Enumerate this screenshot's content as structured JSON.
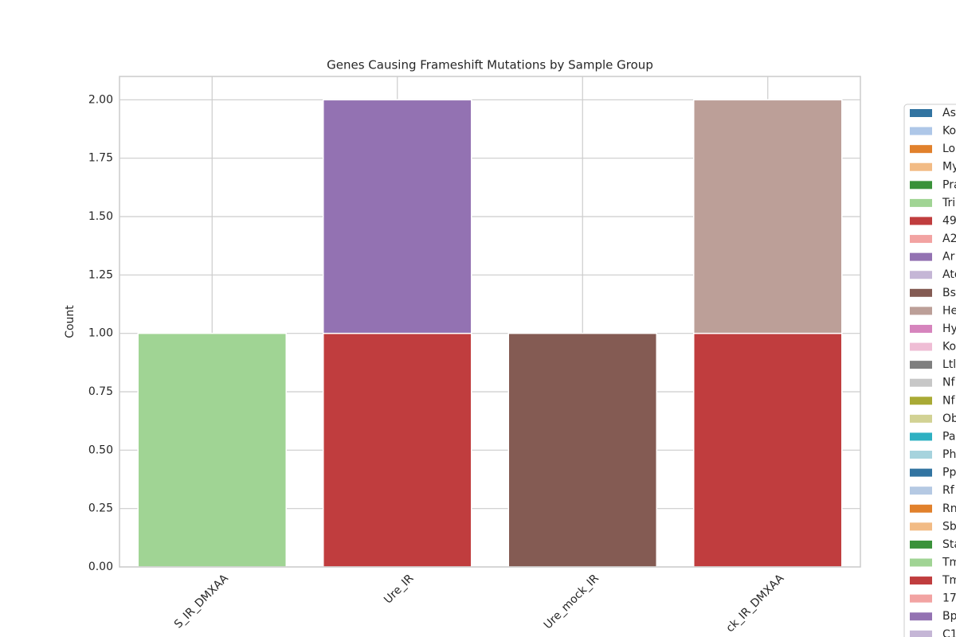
{
  "chart_data": {
    "type": "bar",
    "stacked": true,
    "title": "Genes Causing Frameshift Mutations by Sample Group",
    "y_label": "Count",
    "categories": [
      "S_IR_DMXAA",
      "Ure_IR",
      "Ure_mock_IR",
      "ck_IR_DMXAA"
    ],
    "ylim": [
      0,
      2.1
    ],
    "yticks": [
      {
        "value": 0,
        "label": "0.00"
      },
      {
        "value": 0.25,
        "label": "0.25"
      },
      {
        "value": 0.5,
        "label": "0.50"
      },
      {
        "value": 0.75,
        "label": "0.75"
      },
      {
        "value": 1,
        "label": "1.00"
      },
      {
        "value": 1.25,
        "label": "1.25"
      },
      {
        "value": 1.5,
        "label": "1.50"
      },
      {
        "value": 1.75,
        "label": "1.75"
      },
      {
        "value": 2,
        "label": "2.00"
      }
    ],
    "grid": true,
    "legend_position": "right",
    "series": [
      {
        "name": "As",
        "color": "#3274a1",
        "values": [
          null,
          null,
          null,
          null
        ]
      },
      {
        "name": "Ko",
        "color": "#aec7e8",
        "values": [
          null,
          null,
          null,
          null
        ]
      },
      {
        "name": "Lo",
        "color": "#e1812c",
        "values": [
          null,
          null,
          null,
          null
        ]
      },
      {
        "name": "My",
        "color": "#f2bb85",
        "values": [
          null,
          null,
          null,
          null
        ]
      },
      {
        "name": "Pra",
        "color": "#3a923a",
        "values": [
          null,
          null,
          null,
          null
        ]
      },
      {
        "name": "Tri",
        "color": "#a0d494",
        "values": [
          1,
          null,
          null,
          null
        ]
      },
      {
        "name": "49",
        "color": "#c03d3e",
        "values": [
          null,
          1,
          null,
          1
        ]
      },
      {
        "name": "A2",
        "color": "#f2a3a2",
        "values": [
          null,
          null,
          null,
          null
        ]
      },
      {
        "name": "Ar",
        "color": "#9372b2",
        "values": [
          null,
          1,
          null,
          null
        ]
      },
      {
        "name": "Ato",
        "color": "#c5b6d6",
        "values": [
          null,
          null,
          null,
          null
        ]
      },
      {
        "name": "Bs",
        "color": "#845b53",
        "values": [
          null,
          null,
          1,
          null
        ]
      },
      {
        "name": "He",
        "color": "#bc9f98",
        "values": [
          null,
          null,
          null,
          1
        ]
      },
      {
        "name": "Hy",
        "color": "#d684bd",
        "values": [
          null,
          null,
          null,
          null
        ]
      },
      {
        "name": "Ko",
        "color": "#efbdd5",
        "values": [
          null,
          null,
          null,
          null
        ]
      },
      {
        "name": "Ltl",
        "color": "#7f7f7f",
        "values": [
          null,
          null,
          null,
          null
        ]
      },
      {
        "name": "Nf",
        "color": "#c7c7c7",
        "values": [
          null,
          null,
          null,
          null
        ]
      },
      {
        "name": "Nf",
        "color": "#a9aa35",
        "values": [
          null,
          null,
          null,
          null
        ]
      },
      {
        "name": "Ob",
        "color": "#d2d294",
        "values": [
          null,
          null,
          null,
          null
        ]
      },
      {
        "name": "Pa",
        "color": "#2eb0c2",
        "values": [
          null,
          null,
          null,
          null
        ]
      },
      {
        "name": "Ph",
        "color": "#a6d3dd",
        "values": [
          null,
          null,
          null,
          null
        ]
      },
      {
        "name": "Pp",
        "color": "#3274a1",
        "values": [
          null,
          null,
          null,
          null
        ]
      },
      {
        "name": "Rf",
        "color": "#b5c9e3",
        "values": [
          null,
          null,
          null,
          null
        ]
      },
      {
        "name": "Rn",
        "color": "#e1812c",
        "values": [
          null,
          null,
          null,
          null
        ]
      },
      {
        "name": "Sb",
        "color": "#f2bb85",
        "values": [
          null,
          null,
          null,
          null
        ]
      },
      {
        "name": "Sta",
        "color": "#3a923a",
        "values": [
          null,
          null,
          null,
          null
        ]
      },
      {
        "name": "Tm",
        "color": "#a0d494",
        "values": [
          null,
          null,
          null,
          null
        ]
      },
      {
        "name": "Tm",
        "color": "#c03d3e",
        "values": [
          null,
          null,
          null,
          null
        ]
      },
      {
        "name": "17",
        "color": "#f2a3a2",
        "values": [
          null,
          null,
          null,
          null
        ]
      },
      {
        "name": "Bp",
        "color": "#9372b2",
        "values": [
          null,
          null,
          null,
          null
        ]
      },
      {
        "name": "C1",
        "color": "#c5b6d6",
        "values": [
          null,
          null,
          null,
          null
        ]
      }
    ]
  }
}
